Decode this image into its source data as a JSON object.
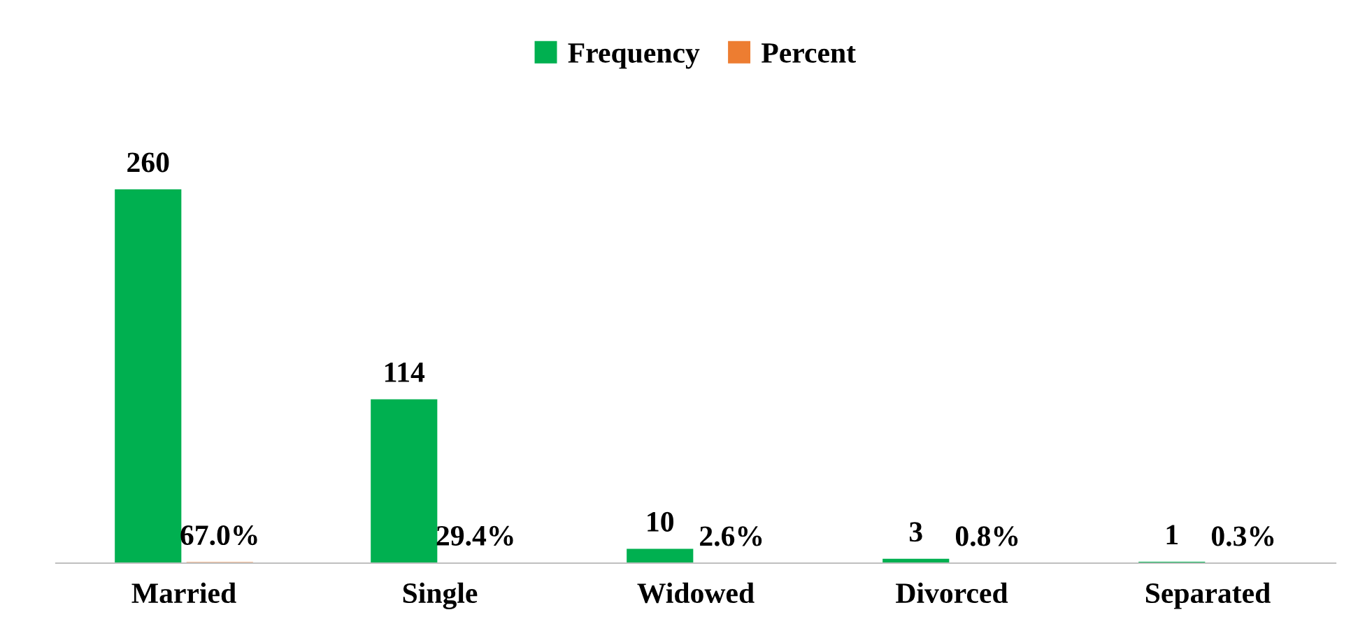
{
  "chart_data": {
    "type": "bar",
    "categories": [
      "Married",
      "Single",
      "Widowed",
      "Divorced",
      "Separated"
    ],
    "series": [
      {
        "name": "Frequency",
        "color": "#00b050",
        "values": [
          260,
          114,
          10,
          3,
          1
        ],
        "value_labels": [
          "260",
          "114",
          "10",
          "3",
          "1"
        ]
      },
      {
        "name": "Percent",
        "color": "#ed7d31",
        "values": [
          0.67,
          0.294,
          0.026,
          0.008,
          0.003
        ],
        "value_labels": [
          "67.0%",
          "29.4%",
          "2.6%",
          "0.8%",
          "0.3%"
        ]
      }
    ],
    "legend": "top",
    "grid": false
  }
}
